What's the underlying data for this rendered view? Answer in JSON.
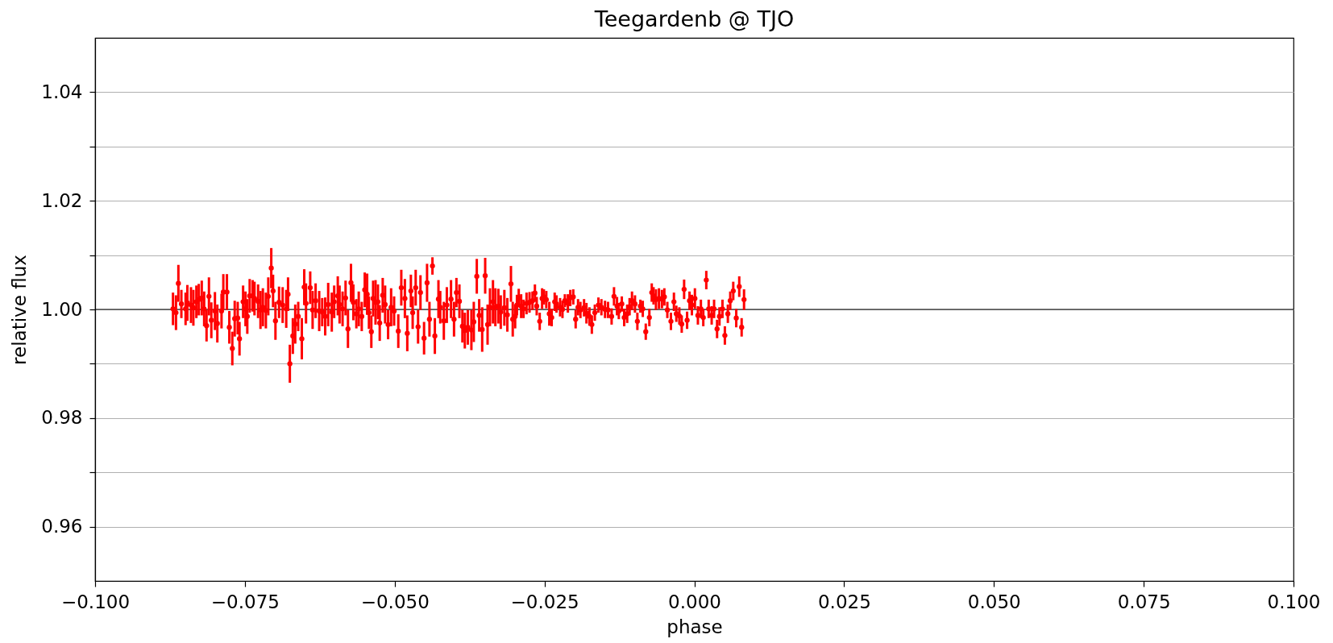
{
  "chart_data": {
    "type": "scatter",
    "title": "Teegardenb @ TJO",
    "xlabel": "phase",
    "ylabel": "relative flux",
    "x": [
      -0.087,
      -0.0865,
      -0.0861,
      -0.0856,
      -0.0849,
      -0.0846,
      -0.084,
      -0.0836,
      -0.0831,
      -0.0827,
      -0.0822,
      -0.0818,
      -0.0814,
      -0.081,
      -0.0806,
      -0.08,
      -0.0796,
      -0.0789,
      -0.0786,
      -0.078,
      -0.0776,
      -0.0771,
      -0.0767,
      -0.0762,
      -0.0759,
      -0.0753,
      -0.0749,
      -0.0746,
      -0.0742,
      -0.0737,
      -0.0734,
      -0.0728,
      -0.0724,
      -0.072,
      -0.0715,
      -0.0711,
      -0.0706,
      -0.0703,
      -0.0699,
      -0.0693,
      -0.0687,
      -0.0681,
      -0.0678,
      -0.0675,
      -0.067,
      -0.0666,
      -0.0661,
      -0.0655,
      -0.0651,
      -0.0648,
      -0.0641,
      -0.0637,
      -0.0632,
      -0.0626,
      -0.0621,
      -0.0616,
      -0.0611,
      -0.0605,
      -0.0601,
      -0.0595,
      -0.0592,
      -0.0587,
      -0.0582,
      -0.0578,
      -0.0573,
      -0.0569,
      -0.0564,
      -0.056,
      -0.0555,
      -0.055,
      -0.0546,
      -0.0543,
      -0.0539,
      -0.0536,
      -0.0532,
      -0.0528,
      -0.0525,
      -0.052,
      -0.0516,
      -0.0511,
      -0.0506,
      -0.0501,
      -0.0494,
      -0.0489,
      -0.0483,
      -0.0479,
      -0.0473,
      -0.047,
      -0.0465,
      -0.0461,
      -0.0457,
      -0.0451,
      -0.0446,
      -0.0442,
      -0.0437,
      -0.0433,
      -0.0427,
      -0.0424,
      -0.0418,
      -0.0413,
      -0.0406,
      -0.0401,
      -0.0397,
      -0.0392,
      -0.0387,
      -0.0383,
      -0.0378,
      -0.0372,
      -0.0368,
      -0.0363,
      -0.0359,
      -0.0354,
      -0.0349,
      -0.0345,
      -0.0341,
      -0.0336,
      -0.0332,
      -0.0327,
      -0.0323,
      -0.0317,
      -0.0312,
      -0.0306,
      -0.0303,
      -0.0299,
      -0.0296,
      -0.0293,
      -0.0289,
      -0.0285,
      -0.028,
      -0.0275,
      -0.027,
      -0.0266,
      -0.0263,
      -0.0258,
      -0.0254,
      -0.0251,
      -0.0247,
      -0.0242,
      -0.0238,
      -0.0233,
      -0.023,
      -0.0224,
      -0.022,
      -0.0216,
      -0.0211,
      -0.0207,
      -0.0202,
      -0.0198,
      -0.0194,
      -0.019,
      -0.0184,
      -0.018,
      -0.0175,
      -0.0171,
      -0.0166,
      -0.016,
      -0.0155,
      -0.0149,
      -0.0144,
      -0.0138,
      -0.0134,
      -0.0129,
      -0.0126,
      -0.0121,
      -0.0117,
      -0.0112,
      -0.0108,
      -0.0104,
      -0.0099,
      -0.0095,
      -0.009,
      -0.0086,
      -0.0081,
      -0.0075,
      -0.0071,
      -0.0068,
      -0.0064,
      -0.0059,
      -0.0054,
      -0.005,
      -0.0045,
      -0.0039,
      -0.0034,
      -0.003,
      -0.0025,
      -0.0021,
      -0.0017,
      -0.0012,
      -0.0008,
      -0.0004,
      0.0001,
      0.0006,
      0.0011,
      0.0015,
      0.002,
      0.0024,
      0.0029,
      0.0033,
      0.0038,
      0.0042,
      0.0047,
      0.0051,
      0.0056,
      0.006,
      0.0065,
      0.007,
      0.0075,
      0.0079,
      0.0083
    ],
    "values": [
      1.0001,
      0.9994,
      1.0048,
      1.001,
      1.0001,
      1.0012,
      1.0008,
      1.0003,
      1.0014,
      1.0018,
      1.0021,
      1.0001,
      0.997,
      1.0024,
      0.998,
      0.9997,
      0.9974,
      0.9997,
      1.0032,
      1.0032,
      0.9967,
      0.9928,
      0.9983,
      0.9984,
      0.9946,
      1.0014,
      1.0001,
      0.9987,
      1.0025,
      1.0025,
      1.002,
      1.0015,
      0.9999,
      1.0004,
      0.9998,
      1.0024,
      1.0076,
      1.0034,
      0.9979,
      1.0013,
      1.0008,
      1.0001,
      1.0028,
      0.99,
      0.9951,
      0.9973,
      0.9987,
      0.9946,
      1.0041,
      1.0011,
      1.004,
      0.9999,
      1.0016,
      0.9997,
      0.9995,
      0.9987,
      1.0009,
      0.9995,
      1.0014,
      1.0025,
      1.0009,
      1.0001,
      1.0021,
      0.9964,
      1.0049,
      1.0013,
      0.9992,
      1.0001,
      0.9987,
      1.0036,
      1.0028,
      0.9994,
      0.9959,
      1.002,
      1.0013,
      1.0014,
      0.9975,
      1.0026,
      1.0009,
      0.9972,
      1.0004,
      0.9997,
      0.996,
      1.004,
      1.002,
      0.9956,
      1.0034,
      0.9994,
      1.004,
      0.9968,
      1.0031,
      0.9947,
      1.0049,
      0.9982,
      1.008,
      0.9951,
      1.0019,
      1.0004,
      0.9979,
      1.0008,
      1.0019,
      0.9982,
      1.0031,
      1.0015,
      0.9969,
      0.9961,
      0.9967,
      0.9962,
      0.9977,
      1.0061,
      0.9989,
      0.9963,
      1.0062,
      0.9972,
      1.0004,
      1.0014,
      1.0004,
      1.0006,
      0.9995,
      1.0003,
      0.999,
      1.0047,
      0.9982,
      0.9987,
      1.0008,
      1.0021,
      1.0006,
      1.0001,
      1.0011,
      1.0013,
      1.0016,
      1.003,
      1.0006,
      0.9978,
      1.002,
      1.0023,
      1.0018,
      0.9992,
      0.9985,
      1.0014,
      1.001,
      1.0004,
      1.0,
      1.0016,
      1.0011,
      1.0021,
      1.0023,
      0.9982,
      1.0004,
      0.9999,
      1.0003,
      0.9993,
      0.9987,
      0.9972,
      0.9994,
      1.0008,
      1.0004,
      1.0,
      0.9999,
      0.9987,
      1.0024,
      1.0006,
      0.9997,
      1.001,
      0.9985,
      0.9992,
      1.0005,
      1.0016,
      1.001,
      0.9978,
      1.0006,
      1.0001,
      0.9959,
      0.9985,
      1.0031,
      1.0025,
      1.0018,
      1.002,
      1.0019,
      1.0023,
      0.9999,
      0.9978,
      1.0014,
      0.9992,
      0.9988,
      0.9973,
      1.0037,
      0.998,
      1.0016,
      1.0008,
      1.002,
      0.9989,
      1.0001,
      0.9985,
      1.0054,
      1.0001,
      0.9989,
      1.0001,
      0.9964,
      0.9987,
      1.0001,
      0.9952,
      0.9992,
      1.0016,
      1.0034,
      0.9984,
      1.0042,
      0.9967,
      1.0018
    ],
    "errors": [
      0.003,
      0.0032,
      0.0034,
      0.0026,
      0.003,
      0.0033,
      0.0033,
      0.0033,
      0.003,
      0.0029,
      0.0032,
      0.0032,
      0.0029,
      0.0035,
      0.0033,
      0.0035,
      0.0035,
      0.0032,
      0.0033,
      0.0033,
      0.003,
      0.0031,
      0.0033,
      0.003,
      0.0031,
      0.003,
      0.0032,
      0.0032,
      0.0031,
      0.0029,
      0.0031,
      0.0031,
      0.0035,
      0.0035,
      0.0033,
      0.0035,
      0.0037,
      0.003,
      0.0035,
      0.0029,
      0.0033,
      0.0035,
      0.0031,
      0.0035,
      0.0033,
      0.0036,
      0.0027,
      0.0038,
      0.0033,
      0.0037,
      0.003,
      0.0035,
      0.0032,
      0.0037,
      0.0026,
      0.0035,
      0.004,
      0.0036,
      0.003,
      0.0036,
      0.0035,
      0.0032,
      0.0032,
      0.0035,
      0.0035,
      0.0033,
      0.0027,
      0.0032,
      0.0027,
      0.0032,
      0.0038,
      0.003,
      0.003,
      0.0033,
      0.0041,
      0.0032,
      0.0033,
      0.0032,
      0.0035,
      0.0027,
      0.0035,
      0.0027,
      0.0031,
      0.0033,
      0.0036,
      0.0033,
      0.003,
      0.003,
      0.0033,
      0.0031,
      0.0032,
      0.003,
      0.0035,
      0.0032,
      0.0016,
      0.0033,
      0.0035,
      0.003,
      0.0035,
      0.0033,
      0.0035,
      0.0032,
      0.0027,
      0.0031,
      0.003,
      0.0033,
      0.0032,
      0.0037,
      0.0037,
      0.0032,
      0.003,
      0.0041,
      0.0033,
      0.0037,
      0.0035,
      0.004,
      0.0035,
      0.0032,
      0.0031,
      0.0033,
      0.0031,
      0.0033,
      0.0032,
      0.0022,
      0.0019,
      0.0017,
      0.0022,
      0.0017,
      0.002,
      0.0019,
      0.0017,
      0.0016,
      0.0017,
      0.0016,
      0.0019,
      0.0014,
      0.0016,
      0.0022,
      0.0016,
      0.0017,
      0.0016,
      0.0017,
      0.0016,
      0.0012,
      0.0017,
      0.0015,
      0.0014,
      0.0017,
      0.0015,
      0.0015,
      0.0016,
      0.0019,
      0.0017,
      0.0017,
      0.0015,
      0.0014,
      0.0015,
      0.0016,
      0.0015,
      0.0015,
      0.0017,
      0.0017,
      0.0015,
      0.0014,
      0.0016,
      0.0017,
      0.0016,
      0.0017,
      0.0016,
      0.0016,
      0.0012,
      0.0015,
      0.0015,
      0.0016,
      0.0017,
      0.0016,
      0.0019,
      0.0019,
      0.0017,
      0.0016,
      0.0015,
      0.0016,
      0.0017,
      0.0015,
      0.0016,
      0.0016,
      0.0018,
      0.0016,
      0.0017,
      0.0019,
      0.0019,
      0.0017,
      0.0017,
      0.0016,
      0.0017,
      0.0017,
      0.0017,
      0.0017,
      0.0017,
      0.0017,
      0.0017,
      0.0017,
      0.0017,
      0.0017,
      0.0017,
      0.0017,
      0.0019,
      0.0017,
      0.0019
    ],
    "color": "#ff0000",
    "marker": "circle",
    "xlim": [
      -0.1,
      0.1
    ],
    "xticks": [
      {
        "value": -0.1,
        "label": "−0.100"
      },
      {
        "value": -0.075,
        "label": "−0.075"
      },
      {
        "value": -0.05,
        "label": "−0.050"
      },
      {
        "value": -0.025,
        "label": "−0.025"
      },
      {
        "value": 0,
        "label": "0.000"
      },
      {
        "value": 0.025,
        "label": "0.025"
      },
      {
        "value": 0.05,
        "label": "0.050"
      },
      {
        "value": 0.075,
        "label": "0.075"
      },
      {
        "value": 0.1,
        "label": "0.100"
      }
    ],
    "ylim": [
      0.95,
      1.05
    ],
    "yticks": [
      0.96,
      {
        "value": 0.97,
        "label": null
      },
      0.98,
      {
        "value": 0.99,
        "label": null
      },
      {
        "value": 1,
        "label": "1.00"
      },
      {
        "value": 1.01,
        "label": null
      },
      1.02,
      {
        "value": 1.03,
        "label": null
      },
      1.04
    ],
    "grid": "y",
    "ref_lines": [
      {
        "axis": "y",
        "value": 1,
        "color": "#000000"
      }
    ]
  }
}
